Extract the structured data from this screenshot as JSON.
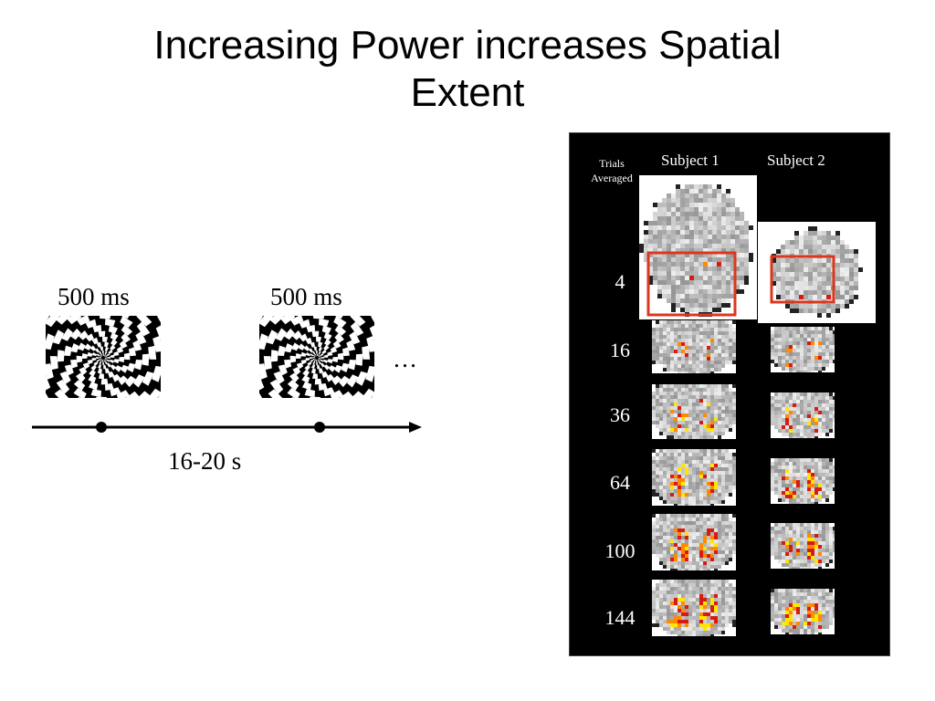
{
  "title": {
    "line1": "Increasing Power increases Spatial",
    "line2": "Extent"
  },
  "stimulus": {
    "duration1": "500 ms",
    "duration2": "500 ms",
    "ellipsis": "…",
    "interval": "16-20 s"
  },
  "panel": {
    "trials_label_1": "Trials",
    "trials_label_2": "Averaged",
    "subject1": "Subject 1",
    "subject2": "Subject 2",
    "trials": [
      "4",
      "16",
      "36",
      "64",
      "100",
      "144"
    ]
  },
  "colors": {
    "activation_red": "#d81b10",
    "activation_orange": "#ff8a00",
    "activation_yellow": "#ffe600",
    "roi_box": "#d9381e"
  }
}
